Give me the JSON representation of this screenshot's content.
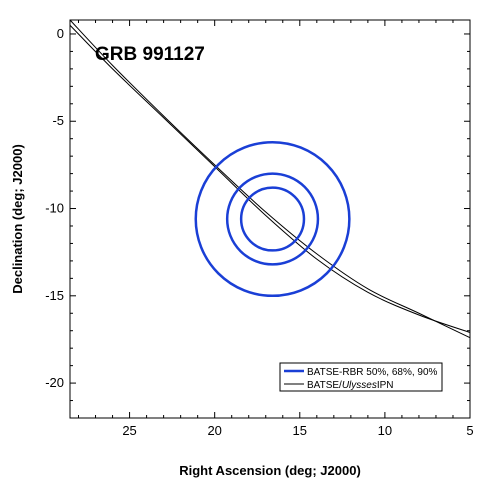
{
  "chart_data": {
    "type": "line",
    "title": "GRB 991127",
    "xlabel": "Right Ascension (deg; J2000)",
    "ylabel": "Declination (deg; J2000)",
    "xlim": [
      28.5,
      5
    ],
    "ylim": [
      0.8,
      -22
    ],
    "x_ticks": [
      25,
      20,
      15,
      10,
      5
    ],
    "y_ticks": [
      0,
      -5,
      -10,
      -15,
      -20
    ],
    "x_tick_labels": [
      "25",
      "20",
      "15",
      "10",
      "5"
    ],
    "y_tick_labels": [
      "0",
      "-5",
      "-10",
      "-15",
      "-20"
    ],
    "grid": false,
    "legend_position": "bottom-right",
    "legend": [
      {
        "label": "BATSE-RBR 50%, 68%, 90%",
        "color": "#1a3fd6",
        "style": "thick"
      },
      {
        "label_prefix": "BATSE/",
        "label_italic": "Ulysses",
        "label_suffix": "IPN",
        "color": "#000000",
        "style": "thin"
      }
    ],
    "circles": {
      "name": "BATSE-RBR 50%, 68%, 90%",
      "color": "#1a3fd6",
      "center": [
        16.6,
        -10.6
      ],
      "radii_dec": [
        1.8,
        2.6,
        4.4
      ]
    },
    "ipn_annulus": {
      "name": "BATSE/Ulysses IPN",
      "color": "#000000",
      "lines": [
        {
          "x": [
            28.5,
            26,
            23,
            20,
            17,
            14,
            11,
            8,
            5
          ],
          "y": [
            0.8,
            -1.8,
            -4.7,
            -7.5,
            -10.2,
            -12.6,
            -14.6,
            -16.0,
            -17.4
          ]
        },
        {
          "x": [
            28.5,
            26,
            23,
            20,
            17,
            14,
            11,
            8,
            5
          ],
          "y": [
            0.5,
            -2.0,
            -4.8,
            -7.6,
            -10.4,
            -12.9,
            -14.8,
            -16.1,
            -17.1
          ]
        }
      ]
    }
  }
}
